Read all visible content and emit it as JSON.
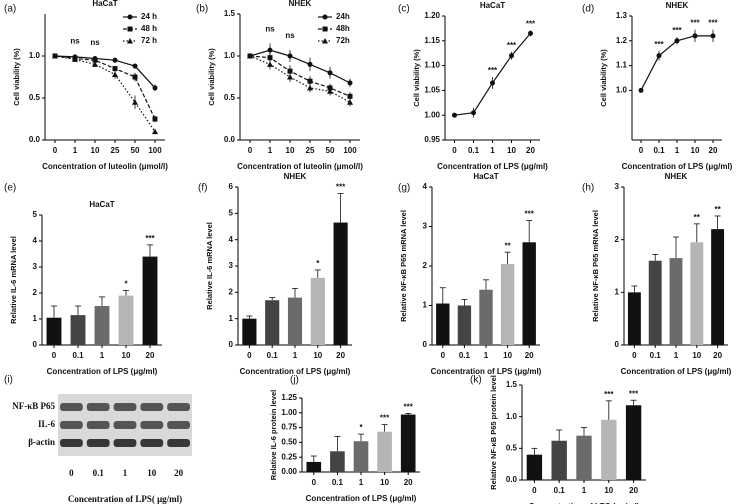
{
  "chart_data": [
    {
      "type": "line",
      "label": "(a)",
      "title": "HaCaT",
      "xlabel": "Concentration of luteolin (μmol/l)",
      "ylabel": "Cell viability (%)",
      "categories": [
        "0",
        "1",
        "10",
        "25",
        "50",
        "100"
      ],
      "ylim": [
        0,
        1.5
      ],
      "yticks": [
        {
          "value": 0,
          "label": "0.0"
        },
        {
          "value": 0.5,
          "label": "0.5"
        },
        {
          "value": 1,
          "label": "1.0"
        }
      ],
      "annotations": [
        null,
        "ns",
        "ns",
        null,
        null,
        null
      ],
      "series": [
        {
          "name": "24 h",
          "color": "#111111",
          "marker": "circle",
          "line_style": "solid",
          "values": [
            1.0,
            0.99,
            0.97,
            0.95,
            0.88,
            0.62
          ],
          "errors": [
            0.01,
            0.02,
            0.02,
            0.03,
            0.03,
            0.04
          ]
        },
        {
          "name": "48 h",
          "color": "#111111",
          "marker": "square",
          "line_style": "dashed",
          "values": [
            1.0,
            0.97,
            0.95,
            0.85,
            0.75,
            0.25
          ],
          "errors": [
            0.01,
            0.02,
            0.03,
            0.03,
            0.05,
            0.04
          ]
        },
        {
          "name": "72 h",
          "color": "#111111",
          "marker": "triangle",
          "line_style": "dotted",
          "values": [
            1.0,
            0.96,
            0.9,
            0.78,
            0.45,
            0.1
          ],
          "errors": [
            0.01,
            0.02,
            0.03,
            0.05,
            0.08,
            0.03
          ]
        }
      ]
    },
    {
      "type": "line",
      "label": "(b)",
      "title": "NHEK",
      "xlabel": "Concentration of luteolin (μmol/l)",
      "ylabel": "Cell viability (%)",
      "categories": [
        "0",
        "1",
        "10",
        "25",
        "50",
        "100"
      ],
      "ylim": [
        0,
        1.5
      ],
      "yticks": [
        {
          "value": 0,
          "label": "0.0"
        },
        {
          "value": 0.5,
          "label": "0.5"
        },
        {
          "value": 1,
          "label": "1.0"
        },
        {
          "value": 1.5,
          "label": "1.5"
        }
      ],
      "annotations": [
        null,
        "ns",
        "ns",
        null,
        null,
        null
      ],
      "series": [
        {
          "name": "24h",
          "color": "#111111",
          "marker": "circle",
          "line_style": "solid",
          "values": [
            1.0,
            1.07,
            1.0,
            0.9,
            0.8,
            0.68
          ],
          "errors": [
            0.01,
            0.08,
            0.07,
            0.08,
            0.07,
            0.05
          ]
        },
        {
          "name": "48h",
          "color": "#111111",
          "marker": "square",
          "line_style": "dashed",
          "values": [
            1.0,
            0.98,
            0.82,
            0.7,
            0.62,
            0.52
          ],
          "errors": [
            0.01,
            0.07,
            0.07,
            0.06,
            0.05,
            0.05
          ]
        },
        {
          "name": "72h",
          "color": "#111111",
          "marker": "triangle",
          "line_style": "dotted",
          "values": [
            1.0,
            0.9,
            0.75,
            0.62,
            0.58,
            0.45
          ],
          "errors": [
            0.01,
            0.06,
            0.06,
            0.05,
            0.05,
            0.05
          ]
        }
      ]
    },
    {
      "type": "line",
      "label": "(c)",
      "title": "HaCaT",
      "xlabel": "Concentration of LPS (μg/ml)",
      "ylabel": "Cell viability (%)",
      "categories": [
        "0",
        "0.1",
        "1",
        "10",
        "20"
      ],
      "ylim": [
        0.95,
        1.2
      ],
      "yticks": [
        0.95,
        {
          "value": 1,
          "label": "1.00"
        },
        1.05,
        {
          "value": 1.1,
          "label": "1.10"
        },
        1.15,
        {
          "value": 1.2,
          "label": "1.20"
        }
      ],
      "annotations": [
        null,
        null,
        "***",
        "***",
        "***"
      ],
      "series": [
        {
          "name": null,
          "color": "#111111",
          "marker": "circle",
          "line_style": "solid",
          "values": [
            1.0,
            1.005,
            1.065,
            1.12,
            1.165
          ],
          "errors": [
            0.002,
            0.01,
            0.012,
            0.008,
            0.006
          ]
        }
      ]
    },
    {
      "type": "line",
      "label": "(d)",
      "title": "NHEK",
      "xlabel": "Concentration of LPS (μg/ml)",
      "ylabel": "Cell viability (%)",
      "categories": [
        "0",
        "0.1",
        "1",
        "10",
        "20"
      ],
      "ylim": [
        0.8,
        1.3
      ],
      "yticks": [
        {
          "value": 1,
          "label": "1.0"
        },
        1.1,
        1.2,
        1.3
      ],
      "annotations": [
        null,
        "***",
        "***",
        "***",
        "***"
      ],
      "series": [
        {
          "name": null,
          "color": "#111111",
          "marker": "circle",
          "line_style": "solid",
          "values": [
            1.0,
            1.14,
            1.2,
            1.22,
            1.22
          ],
          "errors": [
            0.003,
            0.02,
            0.015,
            0.025,
            0.025
          ]
        }
      ]
    },
    {
      "type": "bar",
      "label": "(e)",
      "title": "HaCaT",
      "xlabel": "Concentration of LPS (μg/ml)",
      "ylabel": "Relative IL-6 mRNA level",
      "categories": [
        "0",
        "0.1",
        "1",
        "10",
        "20"
      ],
      "ylim": [
        0,
        5
      ],
      "yticks": [
        0,
        1,
        2,
        3,
        4,
        5
      ],
      "values": [
        1.05,
        1.15,
        1.5,
        1.9,
        3.4
      ],
      "errors": [
        0.45,
        0.35,
        0.35,
        0.2,
        0.45
      ],
      "colors": [
        "#111111",
        "#444444",
        "#6b6b6b",
        "#b5b5b5",
        "#111111"
      ],
      "annotations": [
        null,
        null,
        null,
        "*",
        "***"
      ]
    },
    {
      "type": "bar",
      "label": "(f)",
      "title": "NHEK",
      "xlabel": "Concentration of LPS (μg/ml)",
      "ylabel": "Relative IL-6 mRNA level",
      "categories": [
        "0",
        "0.1",
        "1",
        "10",
        "20"
      ],
      "ylim": [
        0,
        6
      ],
      "yticks": [
        0,
        1,
        2,
        3,
        4,
        5,
        6
      ],
      "values": [
        1.0,
        1.7,
        1.8,
        2.55,
        4.65
      ],
      "errors": [
        0.1,
        0.1,
        0.35,
        0.3,
        1.1
      ],
      "colors": [
        "#111111",
        "#444444",
        "#6b6b6b",
        "#b5b5b5",
        "#111111"
      ],
      "annotations": [
        null,
        null,
        null,
        "*",
        "***"
      ]
    },
    {
      "type": "bar",
      "label": "(g)",
      "title": "HaCaT",
      "xlabel": "Concentration of LPS (μg/ml)",
      "ylabel": "Relative NF-κB P65 mRNA level",
      "categories": [
        "0",
        "0.1",
        "1",
        "10",
        "20"
      ],
      "ylim": [
        0,
        4
      ],
      "yticks": [
        0,
        1,
        2,
        3,
        4
      ],
      "values": [
        1.05,
        1.0,
        1.4,
        2.05,
        2.6
      ],
      "errors": [
        0.4,
        0.15,
        0.25,
        0.3,
        0.55
      ],
      "colors": [
        "#111111",
        "#444444",
        "#6b6b6b",
        "#b5b5b5",
        "#111111"
      ],
      "annotations": [
        null,
        null,
        null,
        "**",
        "***"
      ]
    },
    {
      "type": "bar",
      "label": "(h)",
      "title": "NHEK",
      "xlabel": "Concentration of LPS (μg/ml)",
      "ylabel": "Relative NF-κB P65 mRNA level",
      "categories": [
        "0",
        "0.1",
        "1",
        "10",
        "20"
      ],
      "ylim": [
        0,
        3
      ],
      "yticks": [
        0,
        1,
        2,
        3
      ],
      "values": [
        1.0,
        1.6,
        1.65,
        1.95,
        2.2
      ],
      "errors": [
        0.12,
        0.12,
        0.4,
        0.35,
        0.25
      ],
      "colors": [
        "#111111",
        "#444444",
        "#6b6b6b",
        "#b5b5b5",
        "#111111"
      ],
      "annotations": [
        null,
        null,
        null,
        "**",
        "**"
      ]
    },
    {
      "type": "blot",
      "label": "(i)",
      "row_labels": [
        "NF-κB P65",
        "IL-6",
        "β-actin"
      ],
      "categories": [
        "0",
        "0.1",
        "1",
        "10",
        "20"
      ],
      "xlabel": "Concentration of LPS( μg/ml)"
    },
    {
      "type": "bar",
      "label": "(j)",
      "xlabel": "Concentration of LPS (μg/ml)",
      "ylabel": "Relative IL-6 protein level",
      "categories": [
        "0",
        "0.1",
        "1",
        "10",
        "20"
      ],
      "ylim": [
        0,
        1.25
      ],
      "yticks": [
        {
          "value": 0,
          "label": "0.00"
        },
        0.25,
        {
          "value": 0.5,
          "label": "0.50"
        },
        0.75,
        {
          "value": 1,
          "label": "1.00"
        },
        1.25
      ],
      "values": [
        0.17,
        0.35,
        0.52,
        0.68,
        0.97
      ],
      "errors": [
        0.1,
        0.25,
        0.12,
        0.12,
        0.02
      ],
      "colors": [
        "#111111",
        "#444444",
        "#6b6b6b",
        "#b5b5b5",
        "#111111"
      ],
      "annotations": [
        null,
        null,
        "*",
        "***",
        "***"
      ]
    },
    {
      "type": "bar",
      "label": "(k)",
      "xlabel": "Concentration of LPS (μg/ml)",
      "ylabel": "Relative NF-κB P65 protein level",
      "categories": [
        "0",
        "0.1",
        "1",
        "10",
        "20"
      ],
      "ylim": [
        0,
        1.5
      ],
      "yticks": [
        {
          "value": 0,
          "label": "0.0"
        },
        0.5,
        {
          "value": 1,
          "label": "1.0"
        },
        1.5
      ],
      "values": [
        0.4,
        0.62,
        0.7,
        0.95,
        1.18
      ],
      "errors": [
        0.1,
        0.17,
        0.13,
        0.3,
        0.08
      ],
      "colors": [
        "#111111",
        "#444444",
        "#6b6b6b",
        "#b5b5b5",
        "#111111"
      ],
      "annotations": [
        null,
        null,
        null,
        "***",
        "***"
      ]
    }
  ]
}
